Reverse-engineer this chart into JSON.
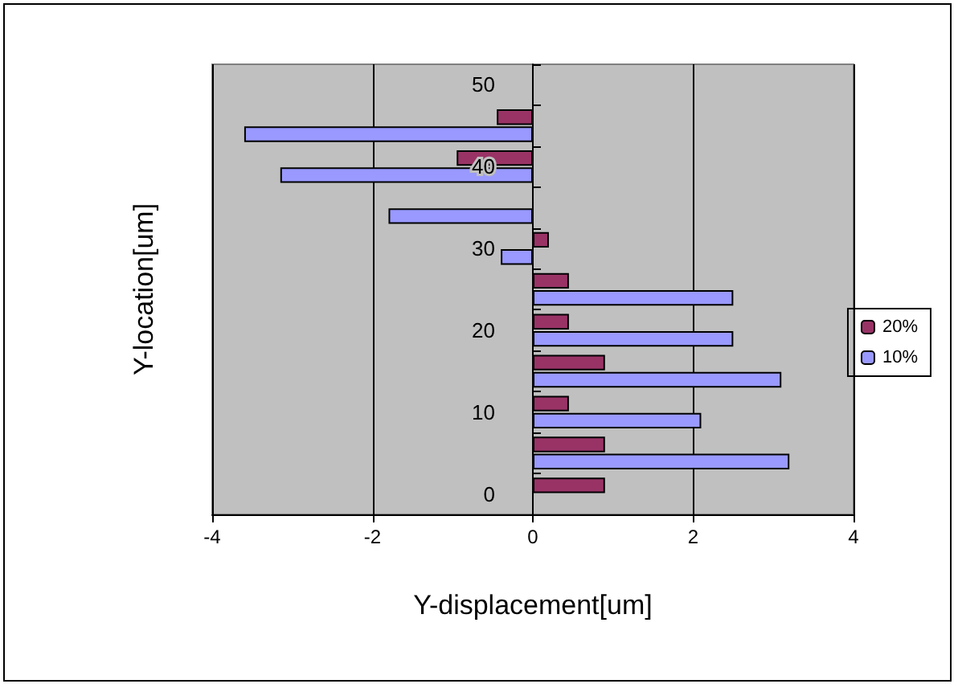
{
  "chart_data": {
    "type": "bar",
    "orientation": "horizontal",
    "xlabel": "Y-displacement[um]",
    "ylabel": "Y-location[um]",
    "categories": [
      "50",
      null,
      "40",
      null,
      "30",
      null,
      "20",
      null,
      "10",
      null,
      "0"
    ],
    "series": [
      {
        "name": "20%",
        "color": "#993366",
        "values": [
          null,
          -0.45,
          -0.95,
          null,
          0.2,
          0.45,
          0.45,
          0.9,
          0.45,
          0.9,
          0.9
        ]
      },
      {
        "name": "10%",
        "color": "#9999ff",
        "values": [
          null,
          -3.6,
          -3.15,
          -1.8,
          -0.4,
          2.5,
          2.5,
          3.1,
          2.1,
          3.2,
          null
        ]
      }
    ],
    "xlim": [
      -4,
      4
    ],
    "xticks": [
      -4,
      -2,
      0,
      2,
      4
    ],
    "grid": "x",
    "legend": "right"
  }
}
